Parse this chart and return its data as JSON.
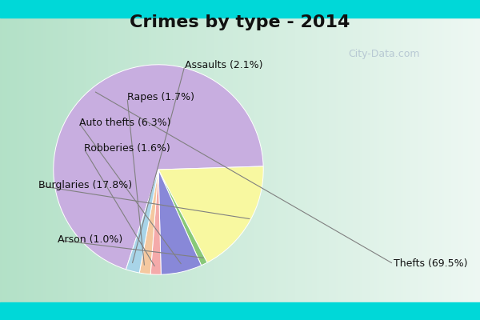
{
  "title": "Crimes by type - 2014",
  "slices": [
    {
      "label": "Thefts (69.5%)",
      "value": 69.5,
      "color": "#c8aee0"
    },
    {
      "label": "Burglaries (17.8%)",
      "value": 17.8,
      "color": "#f8f8a0"
    },
    {
      "label": "Arson (1.0%)",
      "value": 1.0,
      "color": "#88c878"
    },
    {
      "label": "Auto thefts (6.3%)",
      "value": 6.3,
      "color": "#8888d8"
    },
    {
      "label": "Robberies (1.6%)",
      "value": 1.6,
      "color": "#f4aaaa"
    },
    {
      "label": "Rapes (1.7%)",
      "value": 1.7,
      "color": "#f4c8a0"
    },
    {
      "label": "Assaults (2.1%)",
      "value": 2.1,
      "color": "#a8d4e8"
    }
  ],
  "startangle": -108,
  "title_fontsize": 16,
  "label_fontsize": 9,
  "watermark": "City-Data.com"
}
